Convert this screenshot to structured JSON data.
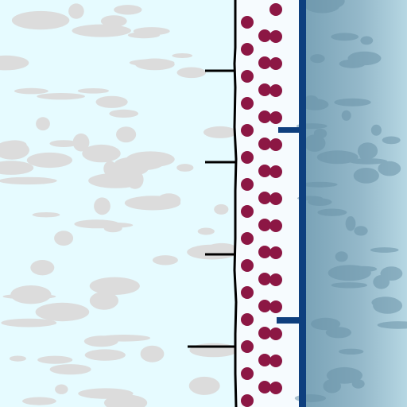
{
  "map": {
    "colors": {
      "land": "#e6fbff",
      "land_mottle": "#dcdcdc",
      "dot_band_bg": "#f6fbfe",
      "dot": "#8c1744",
      "boundary_line": "#000000",
      "water_line": "#0e3f7e",
      "water_light": "#a8c9d6",
      "water_dark": "#7aa3b7",
      "water_mottle": "#6a93a8"
    },
    "features": [
      "land-area-left",
      "dot-pattern-band",
      "black-boundary-line-with-ticks",
      "blue-shoreline-with-ticks",
      "water-area-right"
    ]
  }
}
